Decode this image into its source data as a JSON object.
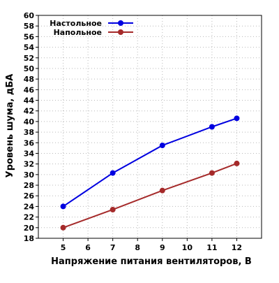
{
  "chart_data": {
    "type": "line",
    "title": "",
    "xlabel": "Напряжение питания вентиляторов, В",
    "ylabel": "Уровень шума, дБА",
    "xlim": [
      4,
      13
    ],
    "ylim": [
      18,
      60
    ],
    "x_ticks": [
      5,
      6,
      7,
      8,
      9,
      10,
      11,
      12
    ],
    "y_ticks": [
      18,
      20,
      22,
      24,
      26,
      28,
      30,
      32,
      34,
      36,
      38,
      40,
      42,
      44,
      46,
      48,
      50,
      52,
      54,
      56,
      58,
      60
    ],
    "grid": true,
    "legend_position": "top-left",
    "series": [
      {
        "name": "Настольное",
        "color": "#0000e0",
        "x": [
          5,
          7,
          9,
          11,
          12
        ],
        "values": [
          24.0,
          30.3,
          35.5,
          39.0,
          40.6
        ]
      },
      {
        "name": "Напольное",
        "color": "#a52a2a",
        "x": [
          5,
          7,
          9,
          11,
          12
        ],
        "values": [
          20.0,
          23.4,
          27.0,
          30.3,
          32.1
        ]
      }
    ]
  }
}
